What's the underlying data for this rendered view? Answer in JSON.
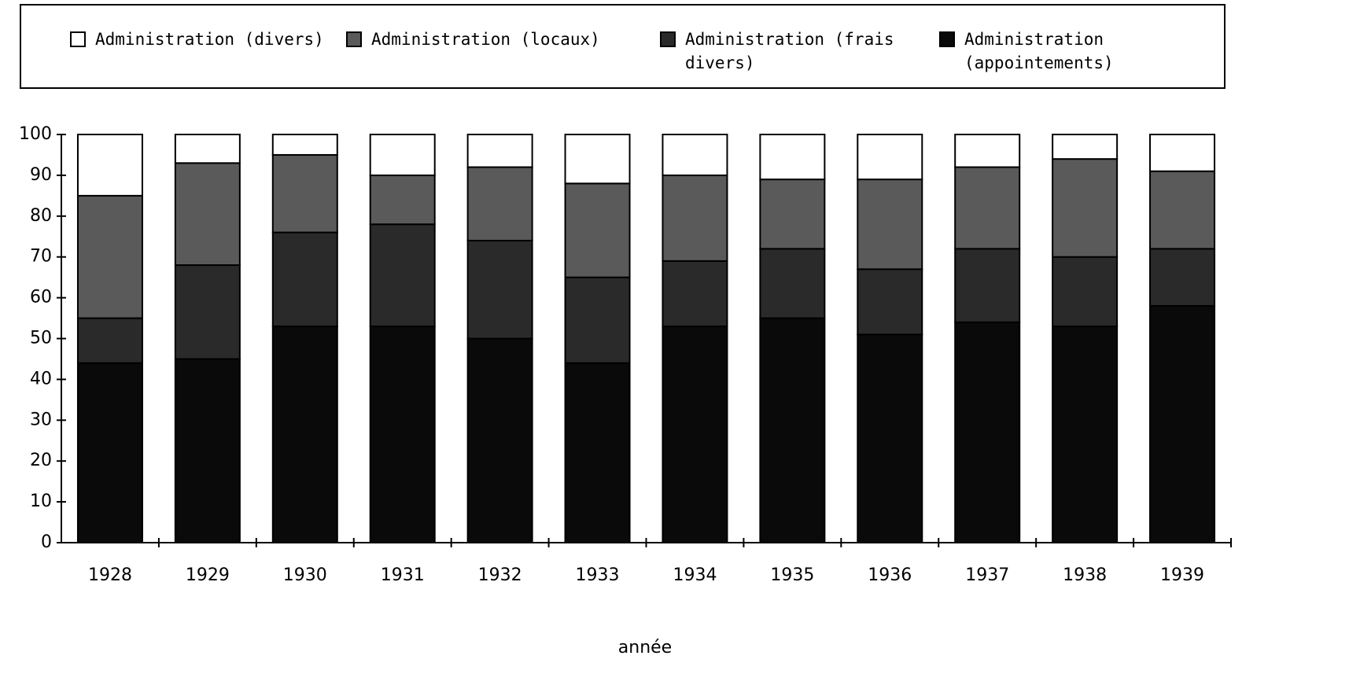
{
  "chart_data": {
    "type": "bar",
    "stacked": true,
    "x_label": "année",
    "categories": [
      "1928",
      "1929",
      "1930",
      "1931",
      "1932",
      "1933",
      "1934",
      "1935",
      "1936",
      "1937",
      "1938",
      "1939"
    ],
    "series": [
      {
        "name": "Administration (divers)",
        "color": "#ffffff",
        "values": [
          15,
          7,
          5,
          10,
          8,
          12,
          10,
          11,
          11,
          8,
          6,
          9
        ]
      },
      {
        "name": "Administration (locaux)",
        "color": "#5a5a5a",
        "values": [
          30,
          25,
          19,
          12,
          18,
          23,
          21,
          17,
          22,
          20,
          24,
          19
        ]
      },
      {
        "name": "Administration (frais divers)",
        "color": "#2a2a2a",
        "values": [
          11,
          23,
          23,
          25,
          24,
          21,
          16,
          17,
          16,
          18,
          17,
          14
        ]
      },
      {
        "name": "Administration (appointements)",
        "color": "#0a0a0a",
        "values": [
          44,
          45,
          53,
          53,
          50,
          44,
          53,
          55,
          51,
          54,
          53,
          58
        ]
      }
    ],
    "ylim": [
      0,
      100
    ],
    "yticks": [
      0,
      10,
      20,
      30,
      40,
      50,
      60,
      70,
      80,
      90,
      100
    ],
    "grid": false
  }
}
